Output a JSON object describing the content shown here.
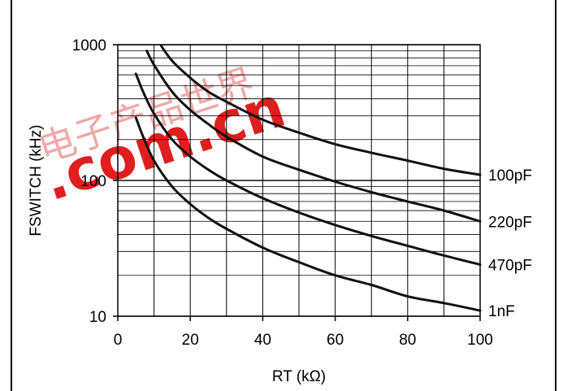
{
  "chart_data": {
    "type": "line",
    "xlabel": "RT (kΩ)",
    "ylabel": "FSWITCH (kHz)",
    "xlim": [
      0,
      100
    ],
    "ylim": [
      10,
      1000
    ],
    "yscale": "log",
    "grid": true,
    "x_ticks": [
      "0",
      "20",
      "40",
      "60",
      "80",
      "100"
    ],
    "y_ticks": [
      "10",
      "100",
      "1000"
    ],
    "series": [
      {
        "name": "100pF",
        "x": [
          12,
          15,
          20,
          25,
          30,
          40,
          50,
          60,
          70,
          80,
          90,
          100
        ],
        "y": [
          980,
          760,
          570,
          450,
          380,
          280,
          225,
          185,
          160,
          140,
          122,
          110
        ]
      },
      {
        "name": "220pF",
        "x": [
          8,
          10,
          15,
          20,
          25,
          30,
          40,
          50,
          60,
          70,
          80,
          90,
          100
        ],
        "y": [
          900,
          710,
          450,
          330,
          260,
          210,
          150,
          120,
          98,
          82,
          70,
          60,
          50
        ]
      },
      {
        "name": "470pF",
        "x": [
          5,
          7,
          10,
          15,
          20,
          25,
          30,
          40,
          50,
          60,
          70,
          80,
          90,
          100
        ],
        "y": [
          610,
          450,
          310,
          200,
          150,
          120,
          100,
          74,
          58,
          47,
          39,
          33,
          28,
          24
        ]
      },
      {
        "name": "1nF",
        "x": [
          5,
          7,
          10,
          15,
          20,
          25,
          30,
          40,
          50,
          60,
          70,
          80,
          90,
          100
        ],
        "y": [
          290,
          210,
          140,
          90,
          67,
          53,
          44,
          32,
          25,
          20,
          17,
          14,
          12.5,
          11
        ]
      }
    ]
  },
  "watermark": {
    "text": ".com.cn",
    "cjk": "电子产品世界",
    "color": "#e01e1e"
  }
}
